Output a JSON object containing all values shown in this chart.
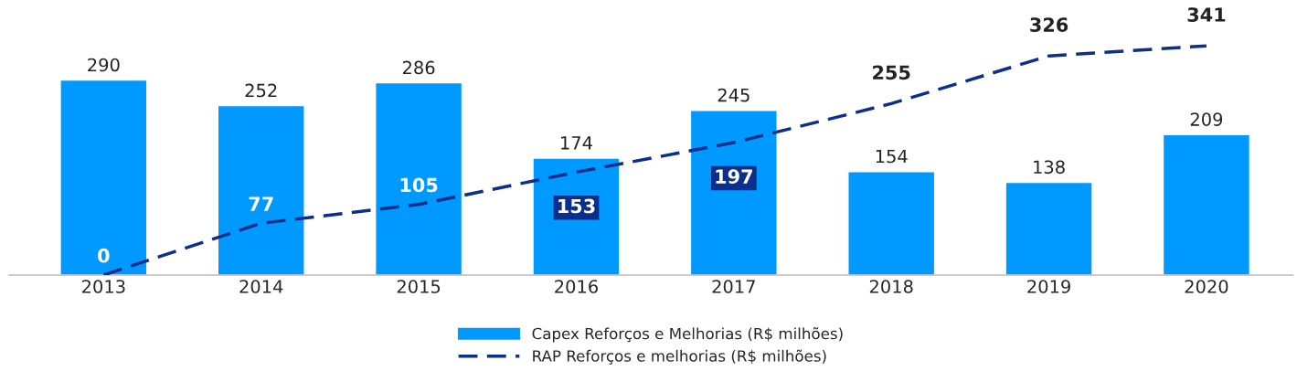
{
  "chart_data": {
    "type": "bar",
    "categories": [
      "2013",
      "2014",
      "2015",
      "2016",
      "2017",
      "2018",
      "2019",
      "2020"
    ],
    "series": [
      {
        "name": "Capex Reforços e Melhorias (R$ milhões)",
        "color": "#0099ff",
        "values": [
          290,
          252,
          286,
          174,
          245,
          154,
          138,
          209
        ]
      },
      {
        "name": "RAP Reforços e melhorias (R$ milhões)",
        "type": "line",
        "color": "#0b2f8a",
        "line_style": "dashed",
        "values": [
          0,
          77,
          105,
          153,
          197,
          255,
          326,
          341
        ]
      }
    ],
    "data_labels": true,
    "legend": "bottom",
    "grid": false
  }
}
